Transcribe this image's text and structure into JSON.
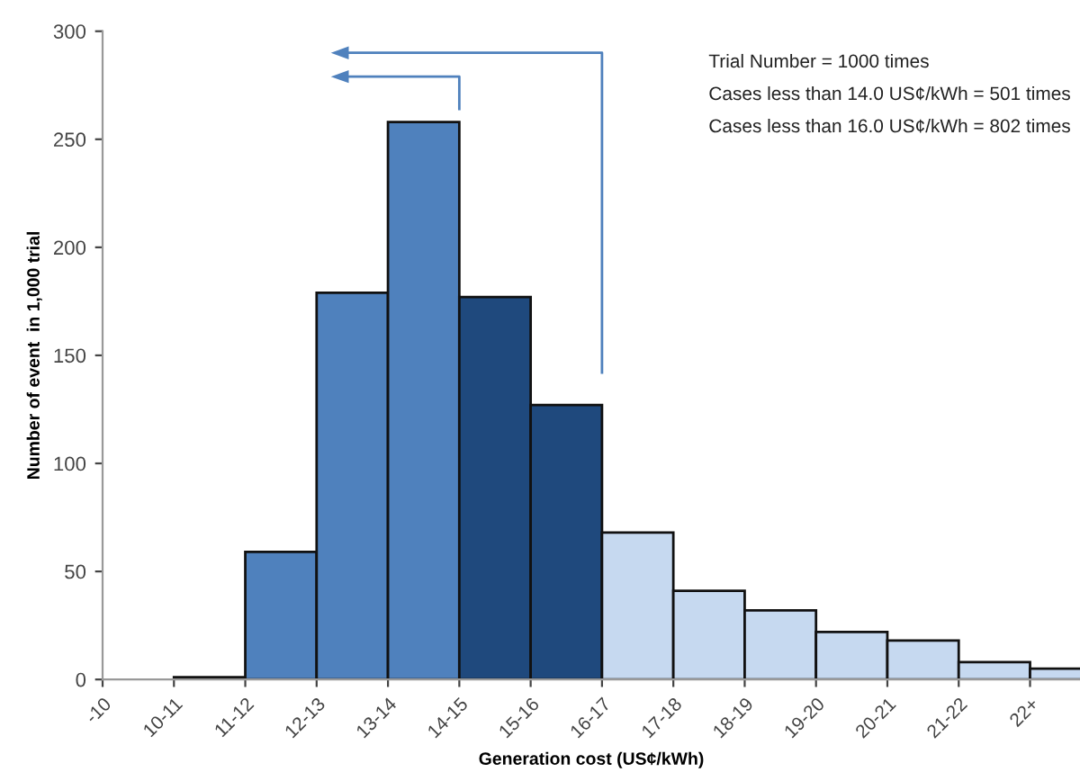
{
  "chart_data": {
    "type": "bar",
    "xlabel": "Generation cost (US¢/kWh)",
    "ylabel": "Number of event  in 1,000 trial",
    "categories": [
      "-10",
      "10-11",
      "11-12",
      "12-13",
      "13-14",
      "14-15",
      "15-16",
      "16-17",
      "17-18",
      "18-19",
      "19-20",
      "20-21",
      "21-22",
      "22+"
    ],
    "values": [
      0,
      1,
      59,
      179,
      258,
      177,
      127,
      68,
      41,
      32,
      22,
      18,
      8,
      5
    ],
    "colors": [
      "#4f81bd",
      "#4f81bd",
      "#4f81bd",
      "#4f81bd",
      "#4f81bd",
      "#1f497d",
      "#1f497d",
      "#c6d9f0",
      "#c6d9f0",
      "#c6d9f0",
      "#c6d9f0",
      "#c6d9f0",
      "#c6d9f0",
      "#c6d9f0"
    ],
    "ylim": [
      0,
      300
    ],
    "yticks": [
      0,
      50,
      100,
      150,
      200,
      250,
      300
    ],
    "grid": false,
    "legend": false,
    "annotations": [
      "Trial Number = 1000 times",
      "Cases less than 14.0 US¢/kWh = 501 times",
      "Cases less than 16.0 US¢/kWh = 802 times"
    ]
  }
}
